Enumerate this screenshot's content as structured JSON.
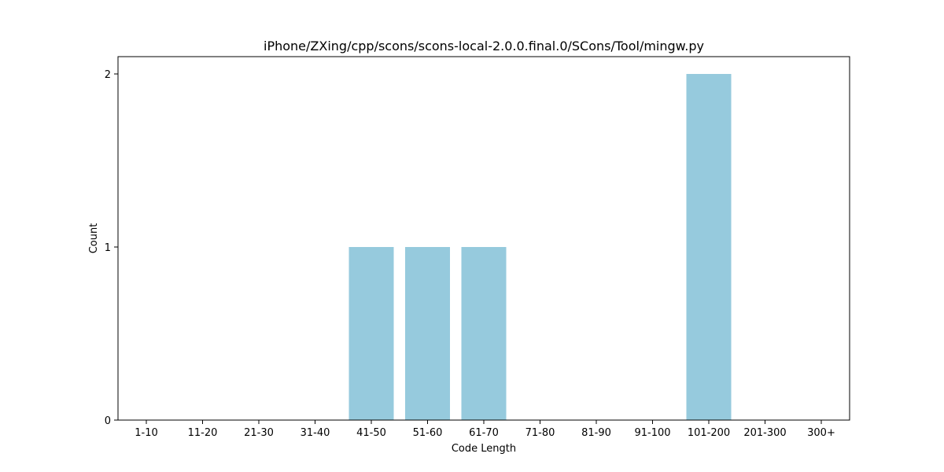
{
  "chart_data": {
    "type": "bar",
    "title": "iPhone/ZXing/cpp/scons/scons-local-2.0.0.final.0/SCons/Tool/mingw.py",
    "xlabel": "Code Length",
    "ylabel": "Count",
    "categories": [
      "1-10",
      "11-20",
      "21-30",
      "31-40",
      "41-50",
      "51-60",
      "61-70",
      "71-80",
      "81-90",
      "91-100",
      "101-200",
      "201-300",
      "300+"
    ],
    "values": [
      0,
      0,
      0,
      0,
      1,
      1,
      1,
      0,
      0,
      0,
      2,
      0,
      0
    ],
    "ylim": [
      0,
      2.1
    ],
    "yticks": [
      0,
      1,
      2
    ],
    "bar_color": "#96cadd",
    "grid": false,
    "legend": false
  }
}
